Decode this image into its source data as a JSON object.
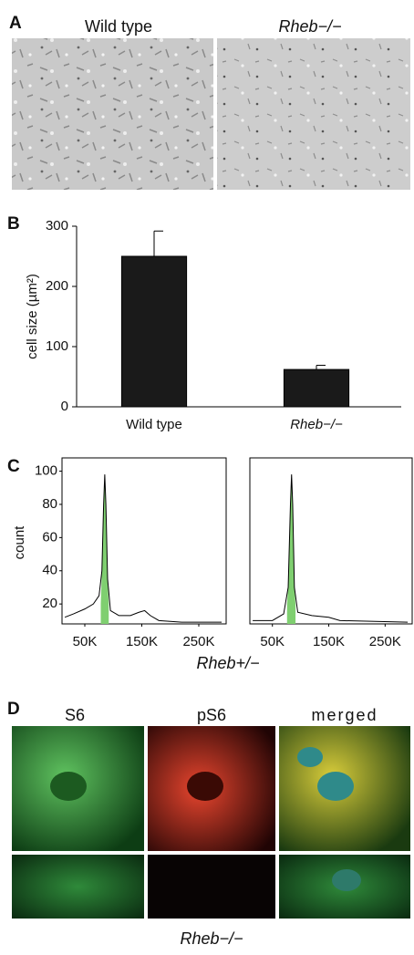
{
  "figure": {
    "panel_labels": [
      "A",
      "B",
      "C",
      "D"
    ],
    "panel_a_titles": [
      "Wild type",
      "Rheb−/−"
    ],
    "panel_c_caption": "Rheb+/−",
    "panel_d_headers": [
      "S6",
      "pS6",
      "merged"
    ],
    "panel_d_caption": "Rheb−/−"
  },
  "chart_data": [
    {
      "type": "bar",
      "ylabel": "cell size (µm²)",
      "categories": [
        "Wild type",
        "Rheb−/−"
      ],
      "values": [
        250,
        62
      ],
      "errors": [
        42,
        7
      ],
      "color": "#1a1a1a",
      "ylim": [
        0,
        300
      ],
      "yticks": [
        0,
        100,
        200,
        300
      ]
    },
    {
      "type": "histogram-curve",
      "ylabel": "count",
      "xlim": [
        10000,
        298000
      ],
      "ylim": [
        8,
        108
      ],
      "xticks": [
        {
          "value": 50000,
          "label": "50K"
        },
        {
          "value": 150000,
          "label": "150K"
        },
        {
          "value": 250000,
          "label": "250K"
        }
      ],
      "yticks": [
        20,
        40,
        60,
        80,
        100
      ],
      "series": [
        {
          "color": "#7fcf70",
          "fill": true,
          "x": [
            78000,
            80000,
            83000,
            85000,
            87000,
            90000,
            92000
          ],
          "values": [
            20,
            40,
            80,
            98,
            80,
            35,
            20
          ]
        },
        {
          "color": "#000000",
          "x": [
            15000,
            30000,
            50000,
            65000,
            75000,
            80000,
            83000,
            85000,
            87000,
            90000,
            95000,
            110000,
            130000,
            145000,
            155000,
            165000,
            180000,
            220000,
            290000
          ],
          "values": [
            12,
            14,
            17,
            20,
            25,
            40,
            80,
            98,
            80,
            35,
            16,
            13,
            13,
            15,
            16,
            13,
            10,
            9,
            9
          ]
        }
      ]
    },
    {
      "type": "histogram-curve",
      "xlim": [
        10000,
        298000
      ],
      "ylim": [
        8,
        108
      ],
      "xticks": [
        {
          "value": 50000,
          "label": "50K"
        },
        {
          "value": 150000,
          "label": "150K"
        },
        {
          "value": 250000,
          "label": "250K"
        }
      ],
      "series": [
        {
          "color": "#7fcf70",
          "fill": true,
          "x": [
            76000,
            78000,
            82000,
            84000,
            86000,
            89000,
            91000
          ],
          "values": [
            20,
            30,
            80,
            98,
            80,
            30,
            20
          ]
        },
        {
          "color": "#000000",
          "x": [
            15000,
            50000,
            70000,
            78000,
            82000,
            84000,
            86000,
            89000,
            95000,
            120000,
            150000,
            170000,
            290000
          ],
          "values": [
            10,
            10,
            14,
            30,
            80,
            98,
            80,
            30,
            15,
            13,
            12,
            10,
            9
          ]
        }
      ]
    }
  ]
}
